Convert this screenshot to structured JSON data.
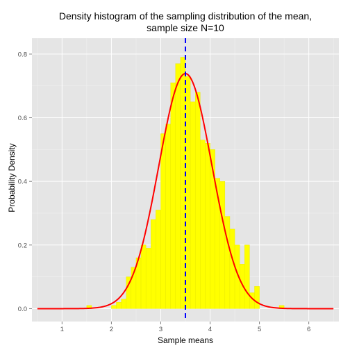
{
  "chart_data": {
    "type": "bar",
    "title_lines": [
      "Density histogram of the sampling distribution of the mean,",
      "sample size N=10"
    ],
    "xlabel": "Sample means",
    "ylabel": "Probability Density",
    "xlim": [
      0.39,
      6.61
    ],
    "ylim": [
      -0.0405,
      0.85
    ],
    "x_ticks": [
      1,
      2,
      3,
      4,
      5,
      6
    ],
    "y_ticks": [
      0.0,
      0.2,
      0.4,
      0.6,
      0.8
    ],
    "y_tick_labels": [
      "0.0",
      "0.2",
      "0.4",
      "0.6",
      "0.8"
    ],
    "bin_width": 0.1,
    "bins": [
      {
        "x0": 1.5,
        "density": 0.01
      },
      {
        "x0": 2.0,
        "density": 0.01
      },
      {
        "x0": 2.1,
        "density": 0.02
      },
      {
        "x0": 2.2,
        "density": 0.03
      },
      {
        "x0": 2.3,
        "density": 0.1
      },
      {
        "x0": 2.4,
        "density": 0.13
      },
      {
        "x0": 2.5,
        "density": 0.16
      },
      {
        "x0": 2.6,
        "density": 0.2
      },
      {
        "x0": 2.7,
        "density": 0.19
      },
      {
        "x0": 2.8,
        "density": 0.28
      },
      {
        "x0": 2.9,
        "density": 0.31
      },
      {
        "x0": 3.0,
        "density": 0.55
      },
      {
        "x0": 3.1,
        "density": 0.58
      },
      {
        "x0": 3.2,
        "density": 0.71
      },
      {
        "x0": 3.3,
        "density": 0.77
      },
      {
        "x0": 3.4,
        "density": 0.79
      },
      {
        "x0": 3.5,
        "density": 0.73
      },
      {
        "x0": 3.6,
        "density": 0.65
      },
      {
        "x0": 3.7,
        "density": 0.68
      },
      {
        "x0": 3.8,
        "density": 0.53
      },
      {
        "x0": 3.9,
        "density": 0.52
      },
      {
        "x0": 4.0,
        "density": 0.5
      },
      {
        "x0": 4.1,
        "density": 0.41
      },
      {
        "x0": 4.2,
        "density": 0.4
      },
      {
        "x0": 4.3,
        "density": 0.29
      },
      {
        "x0": 4.4,
        "density": 0.25
      },
      {
        "x0": 4.5,
        "density": 0.2
      },
      {
        "x0": 4.6,
        "density": 0.14
      },
      {
        "x0": 4.7,
        "density": 0.2
      },
      {
        "x0": 4.8,
        "density": 0.05
      },
      {
        "x0": 4.9,
        "density": 0.07
      },
      {
        "x0": 5.4,
        "density": 0.01
      }
    ],
    "mean_line": {
      "x": 3.5,
      "color": "#0000ff",
      "style": "dashed"
    },
    "density_curve": {
      "mean": 3.5,
      "sd": 0.54,
      "x_range": [
        0.5,
        6.5
      ],
      "color": "#ff0000"
    },
    "colors": {
      "bar_fill": "#ffff00",
      "bar_outline": "#e6e600",
      "panel_bg": "#e5e5e5",
      "grid": "#ffffff"
    },
    "grid": true
  }
}
